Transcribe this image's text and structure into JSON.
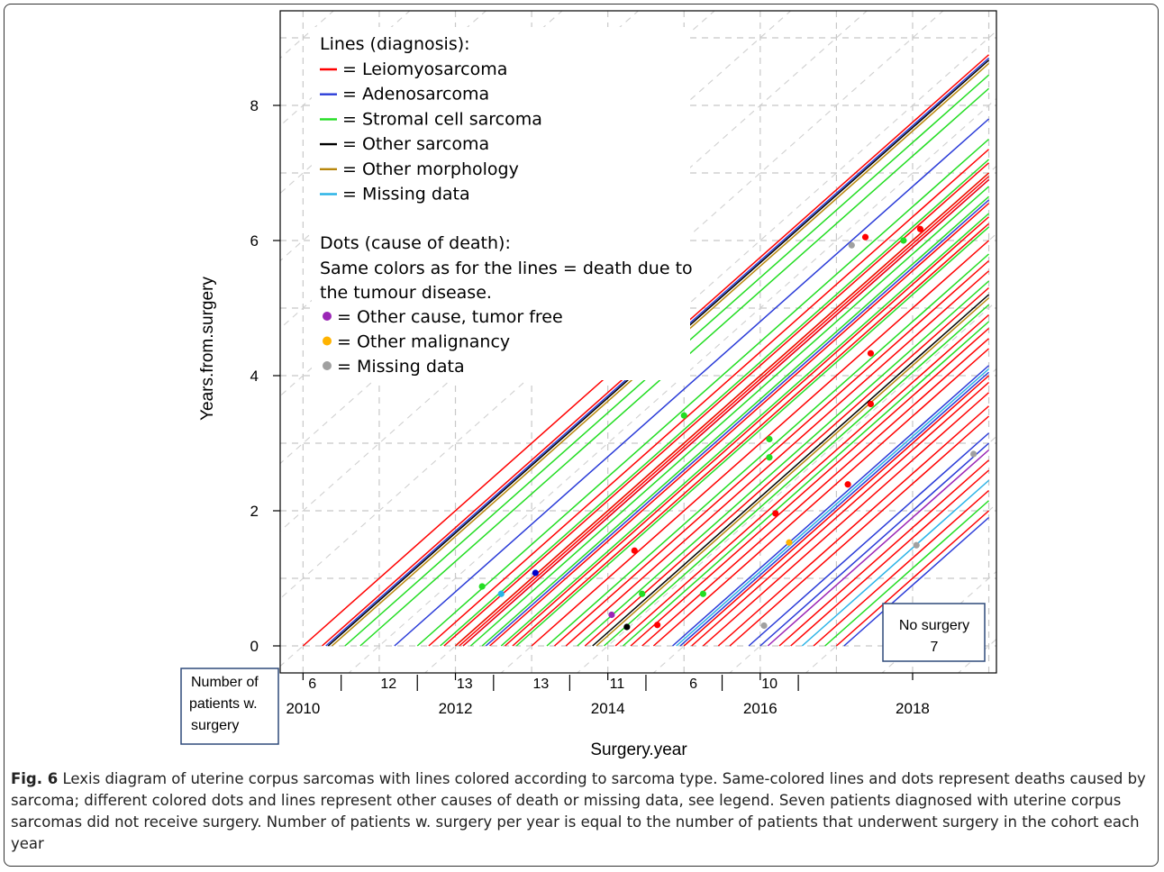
{
  "caption": {
    "label": "Fig. 6",
    "text": "Lexis diagram of uterine corpus sarcomas with lines colored according to sarcoma type. Same-colored lines and dots represent deaths caused by sarcoma; different colored dots and lines represent other causes of death or missing data, see legend. Seven patients diagnosed with uterine corpus sarcomas did not receive surgery. Number of patients w. surgery per year is equal to the number of patients that underwent surgery in the cohort each year"
  },
  "boxes": {
    "no_surgery_line1": "No surgery",
    "no_surgery_line2": "7",
    "count_box_line1": "Number of",
    "count_box_line2": "patients w.",
    "count_box_line3": "surgery"
  },
  "legend": {
    "lines_title": "Lines (diagnosis):",
    "lines": [
      {
        "label": "= Leiomyosarcoma",
        "color": "#ff0000"
      },
      {
        "label": "= Adenosarcoma",
        "color": "#2a3bd8"
      },
      {
        "label": "= Stromal cell sarcoma",
        "color": "#22dd22"
      },
      {
        "label": "= Other sarcoma",
        "color": "#000000"
      },
      {
        "label": "= Other morphology",
        "color": "#b8860b"
      },
      {
        "label": "= Missing data",
        "color": "#2ab3e6"
      }
    ],
    "dots_title": "Dots (cause of death):",
    "dots_note_1": "Same colors as for the lines = death due to",
    "dots_note_2": "the tumour disease.",
    "dots": [
      {
        "label": "= Other cause, tumor free",
        "color": "#9b26b6"
      },
      {
        "label": "= Other malignancy",
        "color": "#ffb300"
      },
      {
        "label": "= Missing data",
        "color": "#a0a0a0"
      }
    ]
  },
  "chart_data": {
    "type": "line",
    "xlabel": "Surgery.year",
    "ylabel": "Years.from.surgery",
    "xlim": [
      2009.7,
      2019.1
    ],
    "ylim": [
      -0.4,
      9.4
    ],
    "x_ticks": [
      2010,
      2012,
      2014,
      2016,
      2018
    ],
    "y_ticks": [
      0,
      2,
      4,
      6,
      8
    ],
    "grid": true,
    "patients_per_year": [
      {
        "year": 2010,
        "count": "6"
      },
      {
        "year": 2011,
        "count": "12"
      },
      {
        "year": 2012,
        "count": "13"
      },
      {
        "year": 2013,
        "count": "13"
      },
      {
        "year": 2014,
        "count": "11"
      },
      {
        "year": 2015,
        "count": "6"
      },
      {
        "year": 2016,
        "count": "10"
      }
    ],
    "patient_lines": [
      {
        "color": "#ff0000",
        "start": 2010.0,
        "end": 2014.2
      },
      {
        "color": "#ff0000",
        "start": 2010.25,
        "end": 2019.0
      },
      {
        "color": "#2a3bd8",
        "start": 2010.3,
        "end": 2019.0
      },
      {
        "color": "#000000",
        "start": 2010.33,
        "end": 2019.0
      },
      {
        "color": "#b8860b",
        "start": 2010.38,
        "end": 2019.0
      },
      {
        "color": "#22dd22",
        "start": 2010.55,
        "end": 2019.0
      },
      {
        "color": "#22dd22",
        "start": 2010.75,
        "end": 2019.0
      },
      {
        "color": "#2a3bd8",
        "start": 2011.2,
        "end": 2019.0
      },
      {
        "color": "#22dd22",
        "start": 2011.5,
        "end": 2019.0
      },
      {
        "color": "#ff0000",
        "start": 2011.65,
        "end": 2019.0
      },
      {
        "color": "#22dd22",
        "start": 2011.8,
        "end": 2019.0
      },
      {
        "color": "#ff0000",
        "start": 2011.85,
        "end": 2019.0
      },
      {
        "color": "#22dd22",
        "start": 2012.0,
        "end": 2019.0
      },
      {
        "color": "#ff0000",
        "start": 2012.0,
        "end": 2019.0
      },
      {
        "color": "#ff0000",
        "start": 2012.05,
        "end": 2019.0
      },
      {
        "color": "#2a3bd8",
        "start": 2012.1,
        "end": 2019.0
      },
      {
        "color": "#ff0000",
        "start": 2012.1,
        "end": 2019.0
      },
      {
        "color": "#22dd22",
        "start": 2012.2,
        "end": 2019.0
      },
      {
        "color": "#22dd22",
        "start": 2012.35,
        "end": 2019.0
      },
      {
        "color": "#2a3bd8",
        "start": 2012.4,
        "end": 2019.0
      },
      {
        "color": "#ff0000",
        "start": 2012.45,
        "end": 2019.0
      },
      {
        "color": "#22dd22",
        "start": 2012.6,
        "end": 2019.0
      },
      {
        "color": "#ff0000",
        "start": 2012.65,
        "end": 2019.0
      },
      {
        "color": "#ff0000",
        "start": 2012.75,
        "end": 2019.0
      },
      {
        "color": "#22dd22",
        "start": 2012.8,
        "end": 2019.0
      },
      {
        "color": "#ff0000",
        "start": 2013.0,
        "end": 2019.0
      },
      {
        "color": "#22dd22",
        "start": 2013.2,
        "end": 2019.0
      },
      {
        "color": "#ff0000",
        "start": 2013.3,
        "end": 2019.0
      },
      {
        "color": "#ff0000",
        "start": 2013.45,
        "end": 2019.0
      },
      {
        "color": "#22dd22",
        "start": 2013.6,
        "end": 2019.0
      },
      {
        "color": "#ff0000",
        "start": 2013.7,
        "end": 2019.0
      },
      {
        "color": "#000000",
        "start": 2013.8,
        "end": 2019.0
      },
      {
        "color": "#b8860b",
        "start": 2013.85,
        "end": 2019.0
      },
      {
        "color": "#22dd22",
        "start": 2013.95,
        "end": 2019.0
      },
      {
        "color": "#ff0000",
        "start": 2014.1,
        "end": 2019.0
      },
      {
        "color": "#22dd22",
        "start": 2014.2,
        "end": 2019.0
      },
      {
        "color": "#ff0000",
        "start": 2014.3,
        "end": 2019.0
      },
      {
        "color": "#ff0000",
        "start": 2014.45,
        "end": 2019.0
      },
      {
        "color": "#ff0000",
        "start": 2014.6,
        "end": 2019.0
      },
      {
        "color": "#2a3bd8",
        "start": 2014.85,
        "end": 2019.0
      },
      {
        "color": "#2ab3e6",
        "start": 2014.9,
        "end": 2019.0
      },
      {
        "color": "#2a3bd8",
        "start": 2014.95,
        "end": 2019.0
      },
      {
        "color": "#ff0000",
        "start": 2015.0,
        "end": 2019.0
      },
      {
        "color": "#ff0000",
        "start": 2015.1,
        "end": 2019.0
      },
      {
        "color": "#ff0000",
        "start": 2015.25,
        "end": 2019.0
      },
      {
        "color": "#ff0000",
        "start": 2015.45,
        "end": 2019.0
      },
      {
        "color": "#ff0000",
        "start": 2015.6,
        "end": 2019.0
      },
      {
        "color": "#2a3bd8",
        "start": 2015.85,
        "end": 2019.0
      },
      {
        "color": "#2a3bd8",
        "start": 2016.0,
        "end": 2019.0
      },
      {
        "color": "#9b26b6",
        "start": 2016.1,
        "end": 2019.0
      },
      {
        "color": "#ff0000",
        "start": 2016.25,
        "end": 2019.0
      },
      {
        "color": "#ff0000",
        "start": 2016.4,
        "end": 2019.0
      },
      {
        "color": "#2ab3e6",
        "start": 2016.55,
        "end": 2019.0
      },
      {
        "color": "#ff0000",
        "start": 2016.7,
        "end": 2019.0
      },
      {
        "color": "#22dd22",
        "start": 2016.85,
        "end": 2019.0
      },
      {
        "color": "#ff0000",
        "start": 2017.0,
        "end": 2019.0
      },
      {
        "color": "#2a3bd8",
        "start": 2017.1,
        "end": 2019.0
      }
    ],
    "death_dots": [
      {
        "x": 2014.25,
        "y": 4.22,
        "color": "#ff0000"
      },
      {
        "x": 2017.38,
        "y": 6.05,
        "color": "#ff0000"
      },
      {
        "x": 2018.1,
        "y": 6.17,
        "color": "#ff0000"
      },
      {
        "x": 2017.2,
        "y": 5.93,
        "color": "#a0a0a0"
      },
      {
        "x": 2017.88,
        "y": 6.0,
        "color": "#22dd22"
      },
      {
        "x": 2017.45,
        "y": 4.33,
        "color": "#ff0000"
      },
      {
        "x": 2017.45,
        "y": 3.58,
        "color": "#ff0000"
      },
      {
        "x": 2015.0,
        "y": 3.41,
        "color": "#22dd22"
      },
      {
        "x": 2016.12,
        "y": 3.06,
        "color": "#22dd22"
      },
      {
        "x": 2016.12,
        "y": 2.79,
        "color": "#22dd22"
      },
      {
        "x": 2017.15,
        "y": 2.39,
        "color": "#ff0000"
      },
      {
        "x": 2016.2,
        "y": 1.96,
        "color": "#ff0000"
      },
      {
        "x": 2016.38,
        "y": 1.53,
        "color": "#ffb300"
      },
      {
        "x": 2018.05,
        "y": 1.49,
        "color": "#a0a0a0"
      },
      {
        "x": 2018.8,
        "y": 2.84,
        "color": "#a0a0a0"
      },
      {
        "x": 2014.35,
        "y": 1.41,
        "color": "#ff0000"
      },
      {
        "x": 2013.05,
        "y": 1.08,
        "color": "#0000cc"
      },
      {
        "x": 2012.35,
        "y": 0.88,
        "color": "#22dd22"
      },
      {
        "x": 2012.6,
        "y": 0.77,
        "color": "#2ab3e6"
      },
      {
        "x": 2014.45,
        "y": 0.77,
        "color": "#22dd22"
      },
      {
        "x": 2015.25,
        "y": 0.77,
        "color": "#22dd22"
      },
      {
        "x": 2014.05,
        "y": 0.46,
        "color": "#9b26b6"
      },
      {
        "x": 2014.65,
        "y": 0.31,
        "color": "#ff0000"
      },
      {
        "x": 2014.25,
        "y": 0.28,
        "color": "#000000"
      },
      {
        "x": 2016.05,
        "y": 0.3,
        "color": "#a0a0a0"
      }
    ]
  }
}
